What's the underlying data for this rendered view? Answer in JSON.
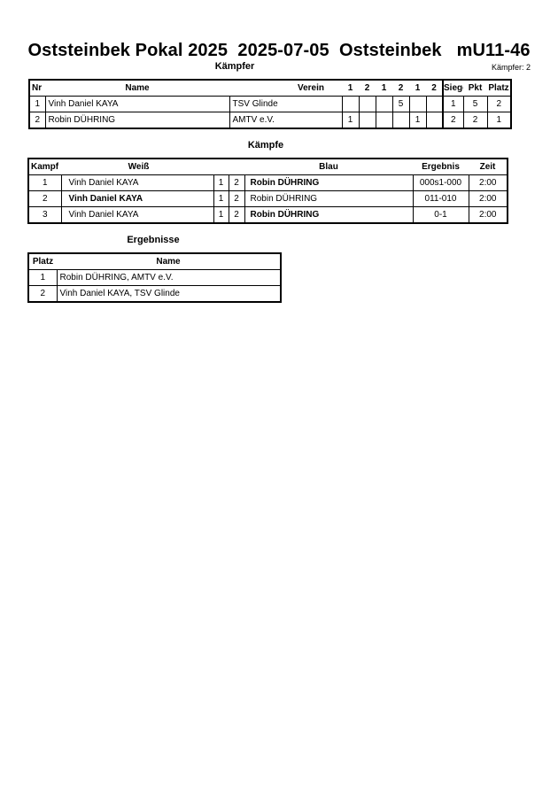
{
  "title": "Oststeinbek Pokal 2025  2025-07-05  Oststeinbek   mU11-46",
  "fighters": {
    "heading": "Kämpfer",
    "count_label": "Kämpfer: 2",
    "headers": [
      "Nr",
      "Name",
      "Verein",
      "1",
      "2",
      "1",
      "2",
      "1",
      "2",
      "Siege",
      "Pkt",
      "Platz"
    ],
    "rows": [
      [
        "1",
        "Vinh Daniel KAYA",
        "TSV Glinde",
        "",
        "",
        "",
        "5",
        "",
        "",
        "1",
        "5",
        "2"
      ],
      [
        "2",
        "Robin DÜHRING",
        "AMTV e.V.",
        "1",
        "",
        "",
        "",
        "1",
        "",
        "2",
        "2",
        "1"
      ]
    ]
  },
  "fights": {
    "heading": "Kämpfe",
    "headers": [
      "Kampf",
      "Weiß",
      "",
      "",
      "Blau",
      "Ergebnis",
      "Zeit"
    ],
    "rows": [
      {
        "nr": "1",
        "white": "Vinh Daniel KAYA",
        "a": "1",
        "b": "2",
        "blue": "Robin DÜHRING",
        "result": "000s1-000",
        "time": "2:00",
        "winner": "blue"
      },
      {
        "nr": "2",
        "white": "Vinh Daniel KAYA",
        "a": "1",
        "b": "2",
        "blue": "Robin DÜHRING",
        "result": "011-010",
        "time": "2:00",
        "winner": "white"
      },
      {
        "nr": "3",
        "white": "Vinh Daniel KAYA",
        "a": "1",
        "b": "2",
        "blue": "Robin DÜHRING",
        "result": "0-1",
        "time": "2:00",
        "winner": "blue"
      }
    ]
  },
  "results": {
    "heading": "Ergebnisse",
    "headers": [
      "Platz",
      "Name"
    ],
    "rows": [
      [
        "1",
        "Robin DÜHRING, AMTV e.V."
      ],
      [
        "2",
        "Vinh Daniel KAYA, TSV Glinde"
      ]
    ]
  }
}
